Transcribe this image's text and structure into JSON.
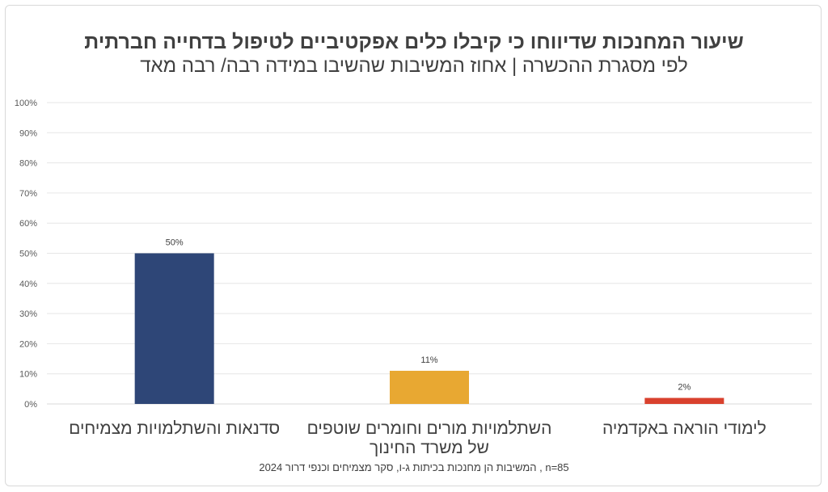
{
  "chart_data": {
    "type": "bar",
    "title": "שיעור המחנכות שדיווחו כי קיבלו כלים אפקטיביים לטיפול בדחייה חברתית",
    "subtitle": "לפי מסגרת ההכשרה | אחוז המשיבות שהשיבו במידה רבה/ רבה מאד",
    "footnote": "n=85 , המשיבות הן מחנכות בכיתות ג-ו, סקר מצמיחים וכנפי דרור 2024",
    "categories": [
      [
        "סדנאות והשתלמויות מצמיחים"
      ],
      [
        "השתלמויות מורים וחומרים שוטפים",
        "של משרד החינוך"
      ],
      [
        "לימודי הוראה באקדמיה"
      ]
    ],
    "values": [
      50,
      11,
      2
    ],
    "value_labels": [
      "50%",
      "11%",
      "2%"
    ],
    "colors": [
      "#2e4677",
      "#e8a832",
      "#d9412e"
    ],
    "ylim": [
      0,
      100
    ],
    "yticks": [
      "0%",
      "10%",
      "20%",
      "30%",
      "40%",
      "50%",
      "60%",
      "70%",
      "80%",
      "90%",
      "100%"
    ],
    "grid": true,
    "xlabel": "",
    "ylabel": ""
  }
}
